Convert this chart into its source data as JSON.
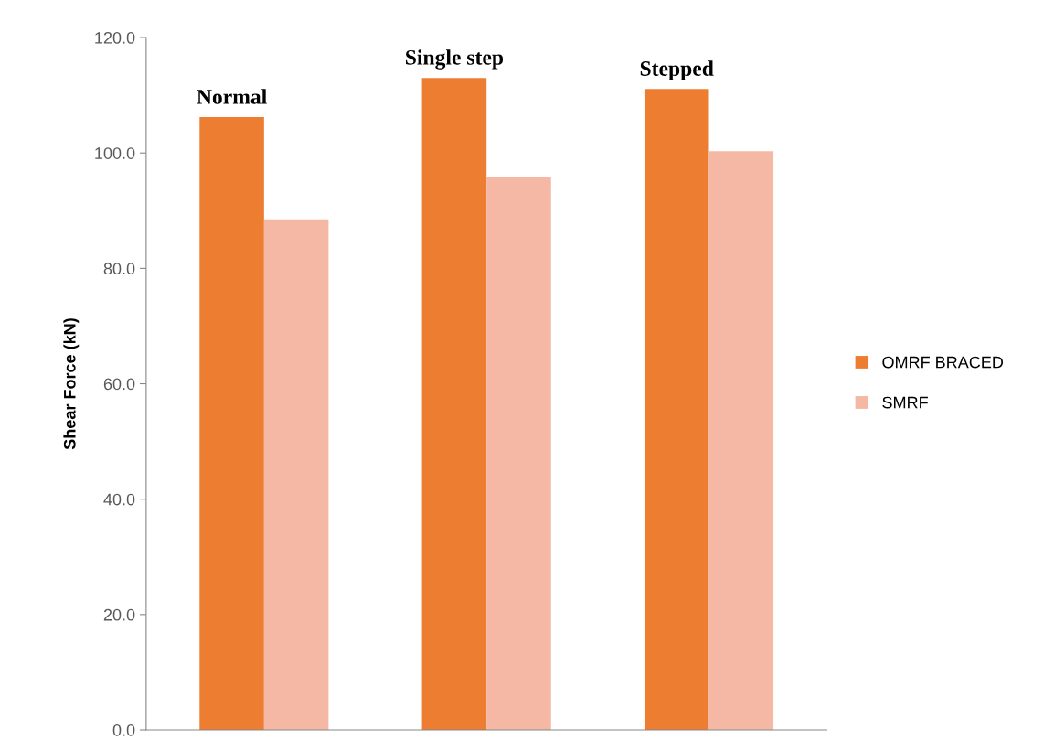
{
  "chart_data": {
    "type": "bar",
    "ylabel": "Shear Force (kN)",
    "categories": [
      "Normal",
      "Single step",
      "Stepped"
    ],
    "series": [
      {
        "name": "OMRF BRACED",
        "color": "#ed7d31",
        "values": [
          106.2,
          113.0,
          111.1
        ]
      },
      {
        "name": "SMRF",
        "color": "#f4b8a4",
        "values": [
          88.5,
          95.9,
          100.3
        ]
      }
    ],
    "ylim": [
      0,
      120
    ],
    "yticks": [
      {
        "value": 0,
        "label": "0.0"
      },
      {
        "value": 20,
        "label": "20.0"
      },
      {
        "value": 40,
        "label": "40.0"
      },
      {
        "value": 60,
        "label": "60.0"
      },
      {
        "value": 80,
        "label": "80.0"
      },
      {
        "value": 100,
        "label": "100.0"
      },
      {
        "value": 120,
        "label": "120.0"
      }
    ],
    "grid": false,
    "legend": "right"
  }
}
